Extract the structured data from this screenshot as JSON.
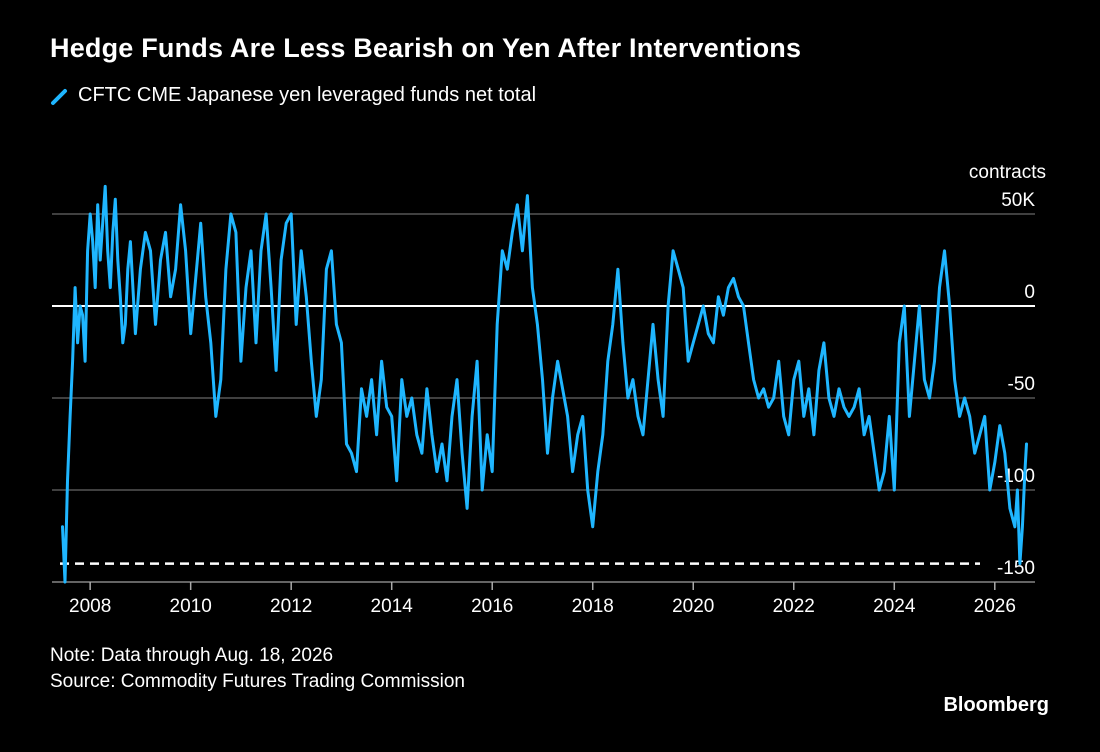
{
  "title": "Hedge Funds Are Less Bearish on Yen After Interventions",
  "legend": {
    "label": "CFTC CME Japanese yen leveraged funds net total",
    "color": "#1fb6ff"
  },
  "unit_label": "contracts",
  "note": "Note: Data through Aug. 18, 2026",
  "source": "Source: Commodity Futures Trading Commission",
  "brand": "Bloomberg",
  "chart_data": {
    "type": "line",
    "title": "Hedge Funds Are Less Bearish on Yen After Interventions",
    "ylabel": "contracts",
    "ylim": [
      -150,
      50
    ],
    "xlim": [
      2007.4,
      2026.8
    ],
    "y_ticks": [
      {
        "value": 50,
        "label": "50K"
      },
      {
        "value": 0,
        "label": "0"
      },
      {
        "value": -50,
        "label": "-50"
      },
      {
        "value": -100,
        "label": "-100"
      },
      {
        "value": -150,
        "label": "-150"
      }
    ],
    "x_ticks": [
      {
        "value": 2008,
        "label": "2008"
      },
      {
        "value": 2010,
        "label": "2010"
      },
      {
        "value": 2012,
        "label": "2012"
      },
      {
        "value": 2014,
        "label": "2014"
      },
      {
        "value": 2016,
        "label": "2016"
      },
      {
        "value": 2018,
        "label": "2018"
      },
      {
        "value": 2020,
        "label": "2020"
      },
      {
        "value": 2022,
        "label": "2022"
      },
      {
        "value": 2024,
        "label": "2024"
      },
      {
        "value": 2026,
        "label": "2026"
      }
    ],
    "reference_line": {
      "value": -140,
      "style": "dashed"
    },
    "grid": true,
    "series": [
      {
        "name": "CFTC CME Japanese yen leveraged funds net total",
        "color": "#1fb6ff",
        "x": [
          2007.45,
          2007.5,
          2007.55,
          2007.6,
          2007.65,
          2007.7,
          2007.75,
          2007.8,
          2007.85,
          2007.9,
          2007.95,
          2008.0,
          2008.05,
          2008.1,
          2008.15,
          2008.2,
          2008.25,
          2008.3,
          2008.35,
          2008.4,
          2008.45,
          2008.5,
          2008.55,
          2008.6,
          2008.65,
          2008.7,
          2008.75,
          2008.8,
          2008.9,
          2009.0,
          2009.1,
          2009.2,
          2009.3,
          2009.4,
          2009.5,
          2009.6,
          2009.7,
          2009.8,
          2009.9,
          2010.0,
          2010.1,
          2010.2,
          2010.3,
          2010.4,
          2010.5,
          2010.6,
          2010.7,
          2010.8,
          2010.9,
          2011.0,
          2011.1,
          2011.2,
          2011.3,
          2011.4,
          2011.5,
          2011.6,
          2011.7,
          2011.8,
          2011.9,
          2012.0,
          2012.1,
          2012.2,
          2012.3,
          2012.4,
          2012.5,
          2012.6,
          2012.7,
          2012.8,
          2012.9,
          2013.0,
          2013.1,
          2013.2,
          2013.3,
          2013.4,
          2013.5,
          2013.6,
          2013.7,
          2013.8,
          2013.9,
          2014.0,
          2014.1,
          2014.2,
          2014.3,
          2014.4,
          2014.5,
          2014.6,
          2014.7,
          2014.8,
          2014.9,
          2015.0,
          2015.1,
          2015.2,
          2015.3,
          2015.4,
          2015.5,
          2015.6,
          2015.7,
          2015.8,
          2015.9,
          2016.0,
          2016.1,
          2016.2,
          2016.3,
          2016.4,
          2016.5,
          2016.6,
          2016.7,
          2016.8,
          2016.9,
          2017.0,
          2017.1,
          2017.2,
          2017.3,
          2017.4,
          2017.5,
          2017.6,
          2017.7,
          2017.8,
          2017.9,
          2018.0,
          2018.1,
          2018.2,
          2018.3,
          2018.4,
          2018.5,
          2018.6,
          2018.7,
          2018.8,
          2018.9,
          2019.0,
          2019.1,
          2019.2,
          2019.3,
          2019.4,
          2019.5,
          2019.6,
          2019.7,
          2019.8,
          2019.9,
          2020.0,
          2020.1,
          2020.2,
          2020.3,
          2020.4,
          2020.5,
          2020.6,
          2020.7,
          2020.8,
          2020.9,
          2021.0,
          2021.1,
          2021.2,
          2021.3,
          2021.4,
          2021.5,
          2021.6,
          2021.7,
          2021.8,
          2021.9,
          2022.0,
          2022.1,
          2022.2,
          2022.3,
          2022.4,
          2022.5,
          2022.6,
          2022.7,
          2022.8,
          2022.9,
          2023.0,
          2023.1,
          2023.2,
          2023.3,
          2023.4,
          2023.5,
          2023.6,
          2023.7,
          2023.8,
          2023.9,
          2024.0,
          2024.1,
          2024.2,
          2024.3,
          2024.4,
          2024.5,
          2024.6,
          2024.7,
          2024.8,
          2024.9,
          2025.0,
          2025.1,
          2025.2,
          2025.3,
          2025.4,
          2025.5,
          2025.6,
          2025.7,
          2025.8,
          2025.9,
          2026.0,
          2026.1,
          2026.2,
          2026.3,
          2026.4,
          2026.45,
          2026.5,
          2026.55,
          2026.6,
          2026.63
        ],
        "values": [
          -120,
          -150,
          -95,
          -60,
          -30,
          10,
          -20,
          0,
          -5,
          -30,
          30,
          50,
          35,
          10,
          55,
          25,
          45,
          65,
          30,
          10,
          40,
          58,
          25,
          5,
          -20,
          -10,
          20,
          35,
          -15,
          20,
          40,
          30,
          -10,
          25,
          40,
          5,
          20,
          55,
          30,
          -15,
          15,
          45,
          5,
          -20,
          -60,
          -40,
          20,
          50,
          40,
          -30,
          10,
          30,
          -20,
          30,
          50,
          10,
          -35,
          25,
          45,
          50,
          -10,
          30,
          5,
          -30,
          -60,
          -40,
          20,
          30,
          -10,
          -20,
          -75,
          -80,
          -90,
          -45,
          -60,
          -40,
          -70,
          -30,
          -55,
          -60,
          -95,
          -40,
          -60,
          -50,
          -70,
          -80,
          -45,
          -70,
          -90,
          -75,
          -95,
          -60,
          -40,
          -80,
          -110,
          -60,
          -30,
          -100,
          -70,
          -90,
          -10,
          30,
          20,
          40,
          55,
          30,
          60,
          10,
          -10,
          -40,
          -80,
          -50,
          -30,
          -45,
          -60,
          -90,
          -70,
          -60,
          -100,
          -120,
          -90,
          -70,
          -30,
          -10,
          20,
          -20,
          -50,
          -40,
          -60,
          -70,
          -40,
          -10,
          -40,
          -60,
          0,
          30,
          20,
          10,
          -30,
          -20,
          -10,
          0,
          -15,
          -20,
          5,
          -5,
          10,
          15,
          5,
          0,
          -20,
          -40,
          -50,
          -45,
          -55,
          -50,
          -30,
          -60,
          -70,
          -40,
          -30,
          -60,
          -45,
          -70,
          -35,
          -20,
          -50,
          -60,
          -45,
          -55,
          -60,
          -55,
          -45,
          -70,
          -60,
          -80,
          -100,
          -90,
          -60,
          -100,
          -20,
          0,
          -60,
          -30,
          0,
          -40,
          -50,
          -30,
          10,
          30,
          0,
          -40,
          -60,
          -50,
          -60,
          -80,
          -70,
          -60,
          -100,
          -85,
          -65,
          -80,
          -110,
          -120,
          -100,
          -140,
          -120,
          -90,
          -75
        ]
      }
    ]
  }
}
